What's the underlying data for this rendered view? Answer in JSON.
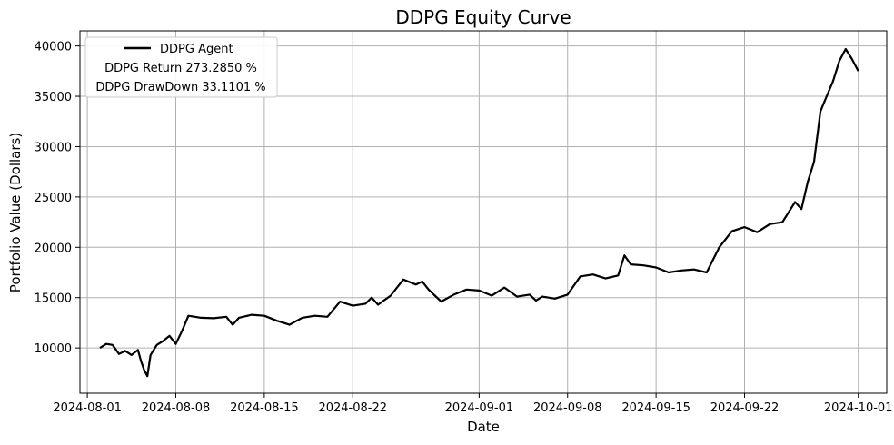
{
  "chart_data": {
    "type": "line",
    "title": "DDPG Equity Curve",
    "xlabel": "Date",
    "ylabel": "Portfolio Value (Dollars)",
    "grid": true,
    "legend_position": "top-left",
    "legend": {
      "entries": [
        "DDPG Agent"
      ],
      "notes": [
        "DDPG Return 273.2850 %",
        "DDPG DrawDown 33.1101 %"
      ]
    },
    "x_ticks": [
      "2024-08-01",
      "2024-08-08",
      "2024-08-15",
      "2024-08-22",
      "2024-09-01",
      "2024-09-08",
      "2024-09-15",
      "2024-09-22",
      "2024-10-01"
    ],
    "y_ticks": [
      10000,
      15000,
      20000,
      25000,
      30000,
      35000,
      40000
    ],
    "xlim": [
      "2024-07-31T10:00",
      "2024-10-03T06:00"
    ],
    "ylim": [
      5500,
      41500
    ],
    "series": [
      {
        "name": "DDPG Agent",
        "color": "#000000",
        "x": [
          "2024-08-02",
          "2024-08-02T12:00",
          "2024-08-03",
          "2024-08-03T12:00",
          "2024-08-04",
          "2024-08-04T12:00",
          "2024-08-05",
          "2024-08-05T06:00",
          "2024-08-05T12:00",
          "2024-08-05T18:00",
          "2024-08-06",
          "2024-08-06T12:00",
          "2024-08-07",
          "2024-08-07T12:00",
          "2024-08-08",
          "2024-08-08T12:00",
          "2024-08-09",
          "2024-08-10",
          "2024-08-11",
          "2024-08-12",
          "2024-08-12T12:00",
          "2024-08-13",
          "2024-08-14",
          "2024-08-15",
          "2024-08-16",
          "2024-08-17",
          "2024-08-18",
          "2024-08-19",
          "2024-08-20",
          "2024-08-21",
          "2024-08-22",
          "2024-08-23",
          "2024-08-23T12:00",
          "2024-08-24",
          "2024-08-25",
          "2024-08-26",
          "2024-08-27",
          "2024-08-27T12:00",
          "2024-08-28",
          "2024-08-29",
          "2024-08-30",
          "2024-08-31",
          "2024-09-01",
          "2024-09-02",
          "2024-09-03",
          "2024-09-04",
          "2024-09-05",
          "2024-09-05T12:00",
          "2024-09-06",
          "2024-09-07",
          "2024-09-08",
          "2024-09-09",
          "2024-09-10",
          "2024-09-11",
          "2024-09-12",
          "2024-09-12T12:00",
          "2024-09-13",
          "2024-09-14",
          "2024-09-15",
          "2024-09-16",
          "2024-09-17",
          "2024-09-18",
          "2024-09-19",
          "2024-09-20",
          "2024-09-21",
          "2024-09-22",
          "2024-09-23",
          "2024-09-24",
          "2024-09-25",
          "2024-09-26",
          "2024-09-26T12:00",
          "2024-09-27",
          "2024-09-27T12:00",
          "2024-09-28",
          "2024-09-28T12:00",
          "2024-09-29",
          "2024-09-29T12:00",
          "2024-09-30",
          "2024-09-30T12:00",
          "2024-10-01"
        ],
        "values": [
          10000,
          10400,
          10300,
          9400,
          9700,
          9300,
          9800,
          8700,
          7800,
          7200,
          9300,
          10300,
          10700,
          11200,
          10400,
          11700,
          13200,
          13000,
          12950,
          13100,
          12300,
          13000,
          13300,
          13200,
          12700,
          12300,
          13000,
          13200,
          13100,
          14600,
          14200,
          14400,
          15000,
          14300,
          15200,
          16800,
          16300,
          16600,
          15800,
          14600,
          15300,
          15800,
          15700,
          15200,
          16000,
          15100,
          15300,
          14700,
          15100,
          14900,
          15300,
          17100,
          17300,
          16900,
          17200,
          19200,
          18300,
          18200,
          18000,
          17500,
          17700,
          17800,
          17500,
          20000,
          21600,
          22000,
          21500,
          22300,
          22500,
          24500,
          23800,
          26500,
          28500,
          33500,
          35000,
          36500,
          38500,
          39700,
          38700,
          37500
        ]
      }
    ]
  }
}
